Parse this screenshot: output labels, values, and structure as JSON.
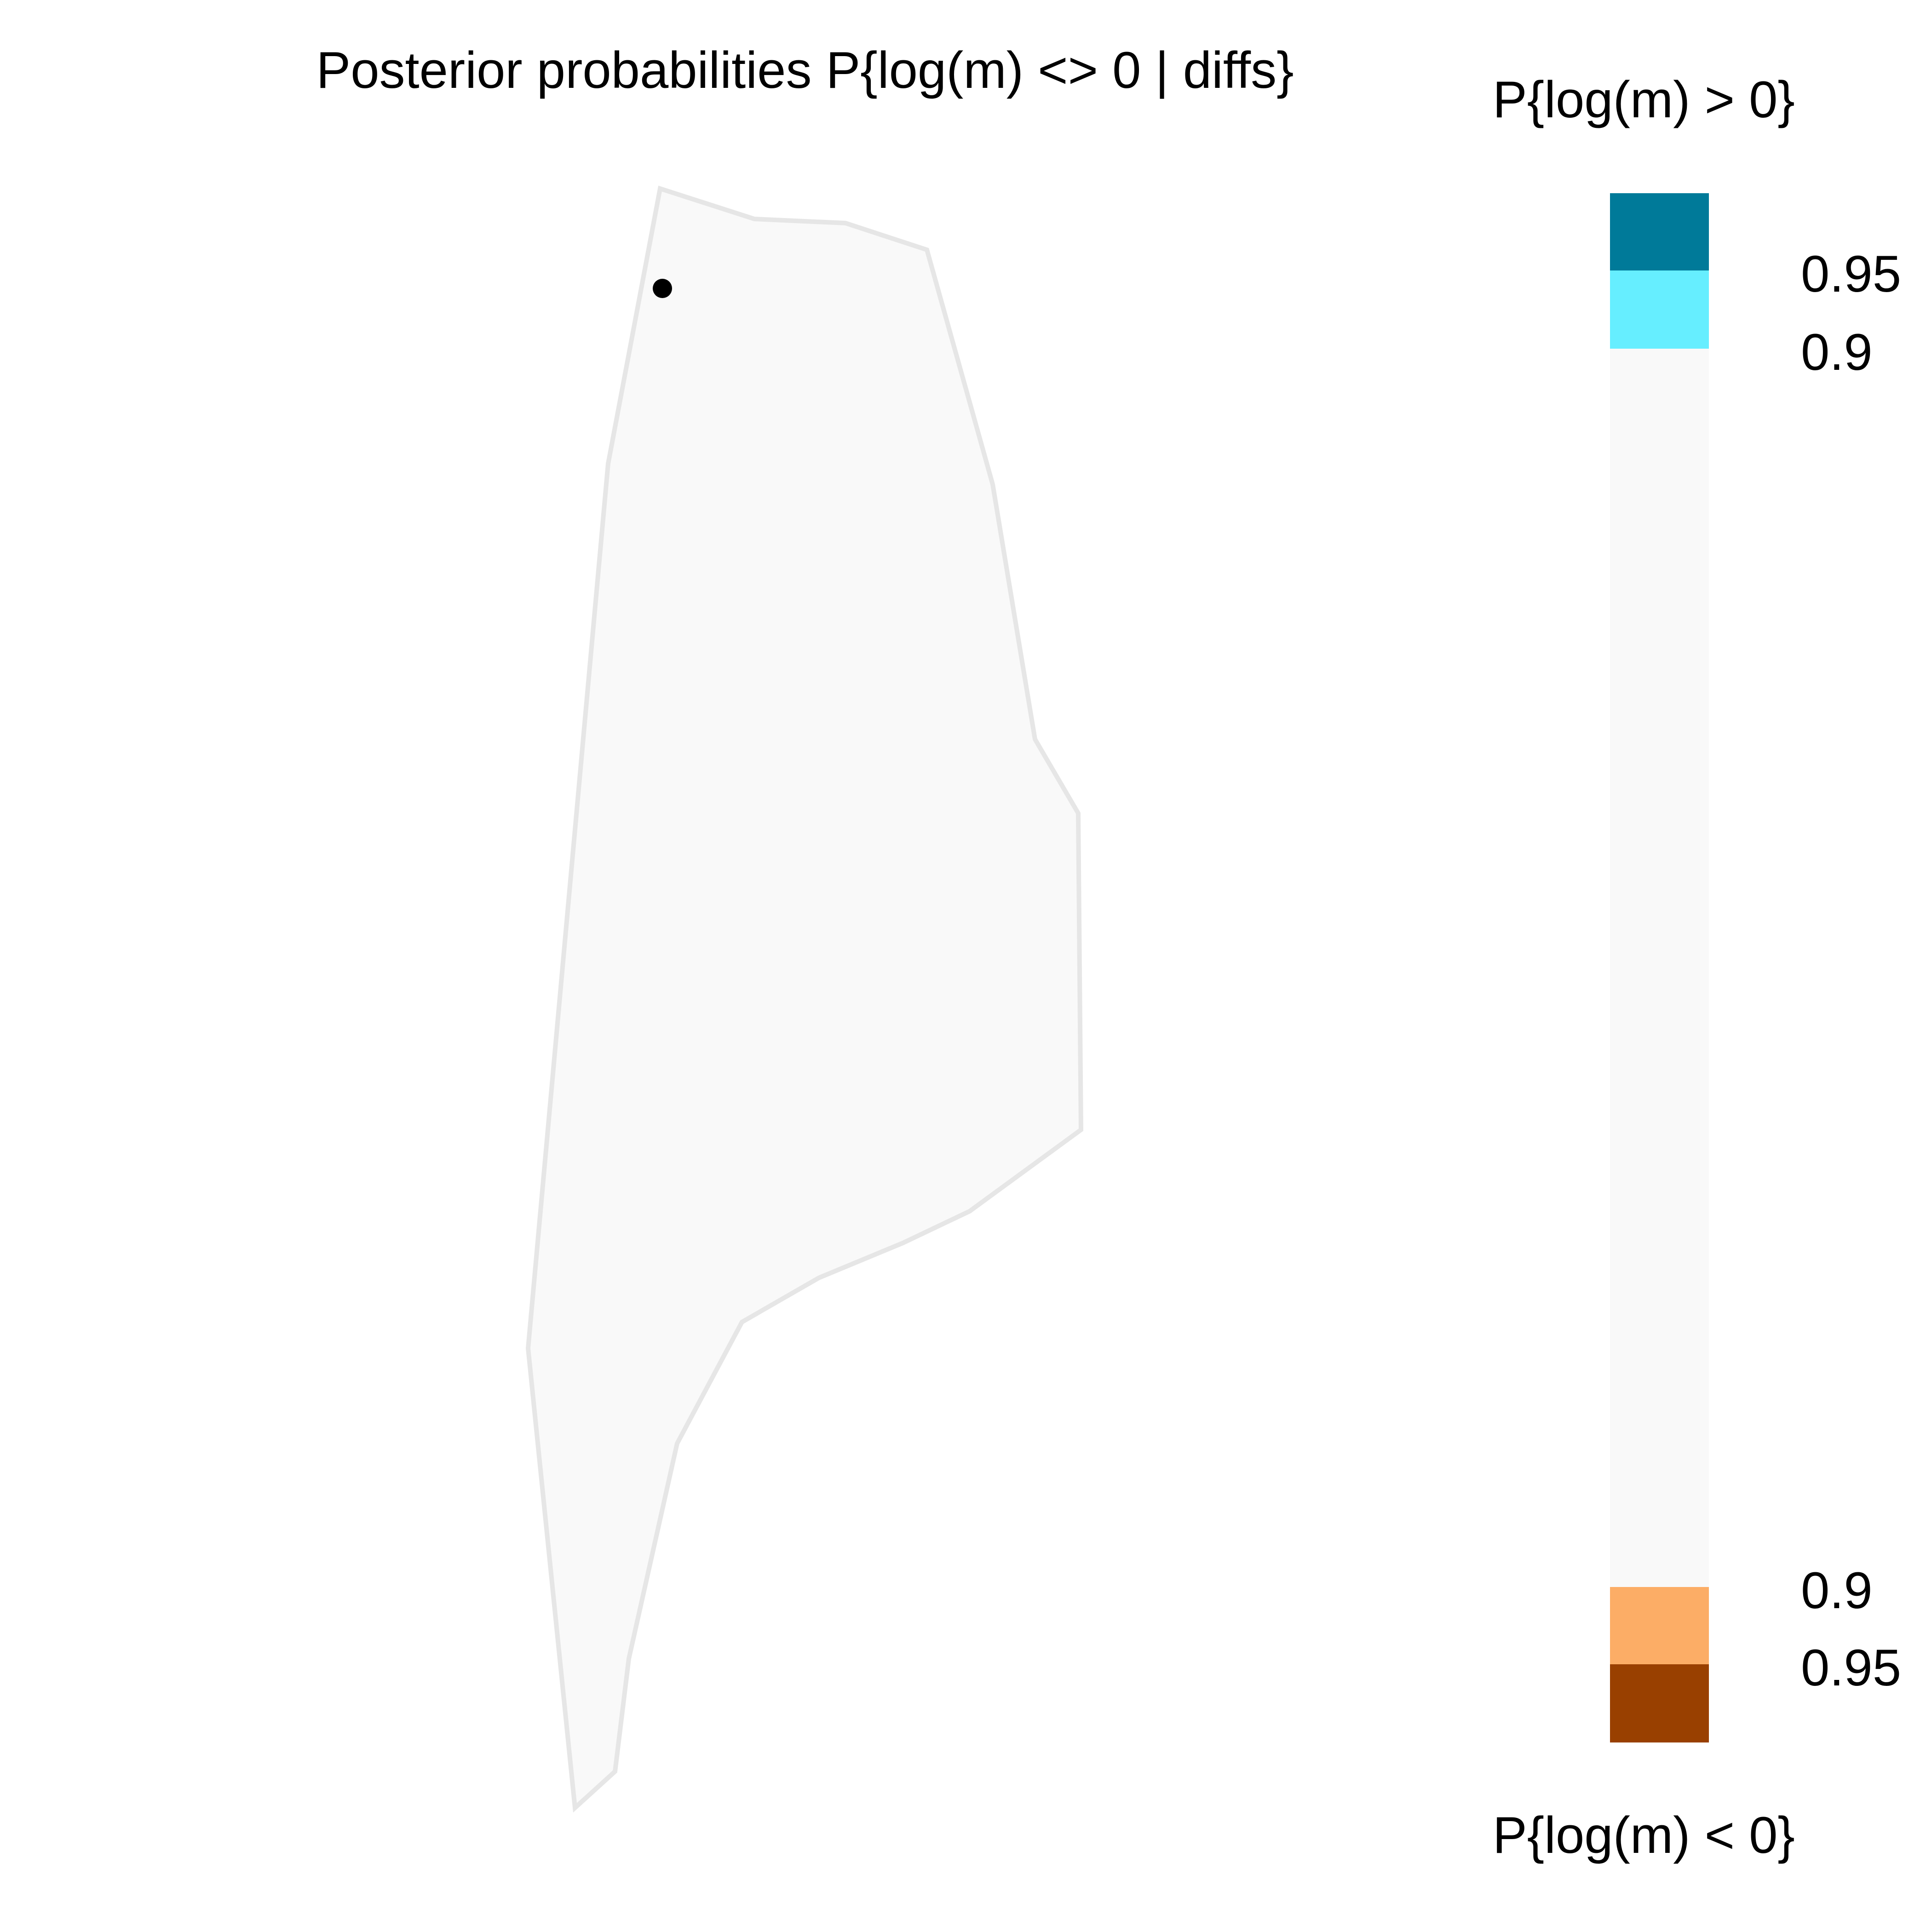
{
  "title": "Posterior probabilities P{log(m) <> 0 | diffs}",
  "legend": {
    "top_title": "P{log(m) > 0}",
    "bottom_title": "P{log(m) < 0}",
    "labels": {
      "upper_095": "0.95",
      "upper_090": "0.9",
      "lower_090": "0.9",
      "lower_095": "0.95"
    },
    "colors": {
      "greater_095": "#007A99",
      "greater_090": "#66EEFF",
      "neutral": "#F9F9F9",
      "less_090": "#FCAD66",
      "less_095": "#994000"
    }
  },
  "map": {
    "region_fill": "#F9F9F9",
    "region_border": "#E6E6E6",
    "deme_marker_color": "#000000",
    "deme_marker_count": 1
  }
}
